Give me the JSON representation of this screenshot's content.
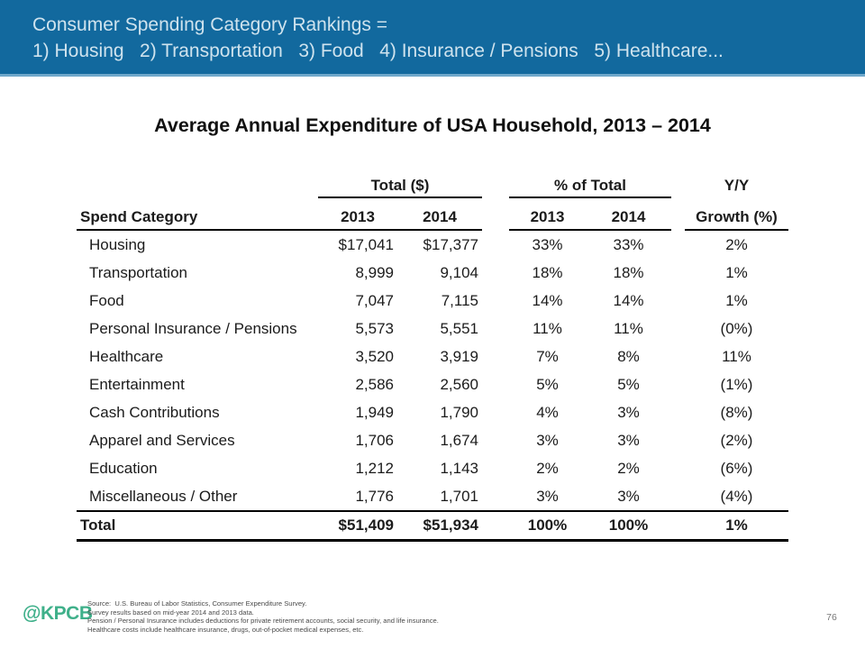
{
  "header_bar": {
    "line1": "Consumer Spending Category Rankings =",
    "line2": "1) Housing   2) Transportation   3) Food   4) Insurance / Pensions   5) Healthcare..."
  },
  "title": "Average Annual Expenditure of USA Household, 2013 – 2014",
  "chart_data": {
    "type": "table",
    "title": "Average Annual Expenditure of USA Household, 2013 – 2014",
    "group_headers": {
      "total": "Total ($)",
      "pct": "% of Total",
      "yy": "Y/Y"
    },
    "header_row": [
      "Spend Category",
      "2013",
      "2014",
      "2013",
      "2014",
      "Growth (%)"
    ],
    "rows": [
      [
        "Housing",
        "$17,041",
        "$17,377",
        "33%",
        "33%",
        "2%"
      ],
      [
        "Transportation",
        "8,999",
        "9,104",
        "18%",
        "18%",
        "1%"
      ],
      [
        "Food",
        "7,047",
        "7,115",
        "14%",
        "14%",
        "1%"
      ],
      [
        "Personal Insurance / Pensions",
        "5,573",
        "5,551",
        "11%",
        "11%",
        "(0%)"
      ],
      [
        "Healthcare",
        "3,520",
        "3,919",
        "7%",
        "8%",
        "11%"
      ],
      [
        "Entertainment",
        "2,586",
        "2,560",
        "5%",
        "5%",
        "(1%)"
      ],
      [
        "Cash Contributions",
        "1,949",
        "1,790",
        "4%",
        "3%",
        "(8%)"
      ],
      [
        "Apparel and Services",
        "1,706",
        "1,674",
        "3%",
        "3%",
        "(2%)"
      ],
      [
        "Education",
        "1,212",
        "1,143",
        "2%",
        "2%",
        "(6%)"
      ],
      [
        "Miscellaneous / Other",
        "1,776",
        "1,701",
        "3%",
        "3%",
        "(4%)"
      ]
    ],
    "total_row": [
      "Total",
      "$51,409",
      "$51,934",
      "100%",
      "100%",
      "1%"
    ]
  },
  "footer": {
    "logo_text": "@KPCB",
    "source_lines": [
      "Source:  U.S. Bureau of Labor Statistics, Consumer Expenditure Survey.",
      "Survey results based on mid-year 2014 and 2013 data.",
      "Pension / Personal Insurance includes deductions for private retirement accounts, social security, and life insurance.",
      "Healthcare costs include healthcare insurance, drugs, out-of-pocket medical expenses, etc."
    ],
    "page_number": "76"
  },
  "colors": {
    "header_bg": "#12699e",
    "header_accent": "#6fa8cb",
    "header_text": "#cfe3ee",
    "logo_green": "#3fb08a"
  }
}
